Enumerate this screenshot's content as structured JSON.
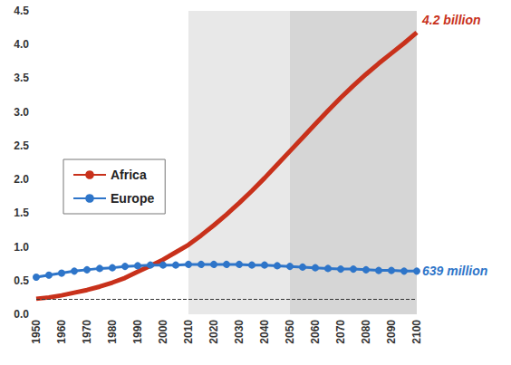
{
  "chart_data": {
    "type": "line",
    "x": [
      1950,
      1955,
      1960,
      1965,
      1970,
      1975,
      1980,
      1985,
      1990,
      1995,
      2000,
      2005,
      2010,
      2015,
      2020,
      2025,
      2030,
      2035,
      2040,
      2045,
      2050,
      2055,
      2060,
      2065,
      2070,
      2075,
      2080,
      2085,
      2090,
      2095,
      2100
    ],
    "series": [
      {
        "name": "Africa",
        "color": "#c8311b",
        "marker": "none",
        "line_style": "solid",
        "end_label": "4.2 billion",
        "values": [
          0.23,
          0.25,
          0.28,
          0.32,
          0.36,
          0.41,
          0.47,
          0.54,
          0.63,
          0.72,
          0.81,
          0.92,
          1.03,
          1.17,
          1.32,
          1.48,
          1.65,
          1.83,
          2.02,
          2.22,
          2.42,
          2.62,
          2.82,
          3.02,
          3.21,
          3.39,
          3.56,
          3.72,
          3.87,
          4.02,
          4.18
        ]
      },
      {
        "name": "Europe",
        "color": "#2e75c9",
        "marker": "circle",
        "line_style": "solid",
        "end_label": "639 million",
        "values": [
          0.55,
          0.58,
          0.61,
          0.64,
          0.66,
          0.68,
          0.69,
          0.71,
          0.72,
          0.73,
          0.73,
          0.73,
          0.74,
          0.74,
          0.74,
          0.74,
          0.74,
          0.73,
          0.73,
          0.72,
          0.71,
          0.7,
          0.69,
          0.68,
          0.67,
          0.67,
          0.66,
          0.65,
          0.65,
          0.64,
          0.64
        ]
      }
    ],
    "xlim": [
      1950,
      2100
    ],
    "xticks": [
      1950,
      1960,
      1970,
      1980,
      1990,
      2000,
      2010,
      2020,
      2030,
      2040,
      2050,
      2060,
      2070,
      2080,
      2090,
      2100
    ],
    "ylim": [
      0,
      4.5
    ],
    "yticks": [
      {
        "value": 0,
        "label": "0.0"
      },
      {
        "value": 0.5,
        "label": "0.5"
      },
      {
        "value": 1,
        "label": "1.0"
      },
      {
        "value": 1.5,
        "label": "1.5"
      },
      {
        "value": 2,
        "label": "2.0"
      },
      {
        "value": 2.5,
        "label": "2.5"
      },
      {
        "value": 3,
        "label": "3.0"
      },
      {
        "value": 3.5,
        "label": "3.5"
      },
      {
        "value": 4,
        "label": "4.0"
      },
      {
        "value": 4.5,
        "label": "4.5"
      }
    ],
    "shaded_ranges": [
      [
        2010,
        2050
      ],
      [
        2050,
        2100
      ]
    ],
    "reference_line": 0.22,
    "grid": false,
    "legend": "left"
  }
}
